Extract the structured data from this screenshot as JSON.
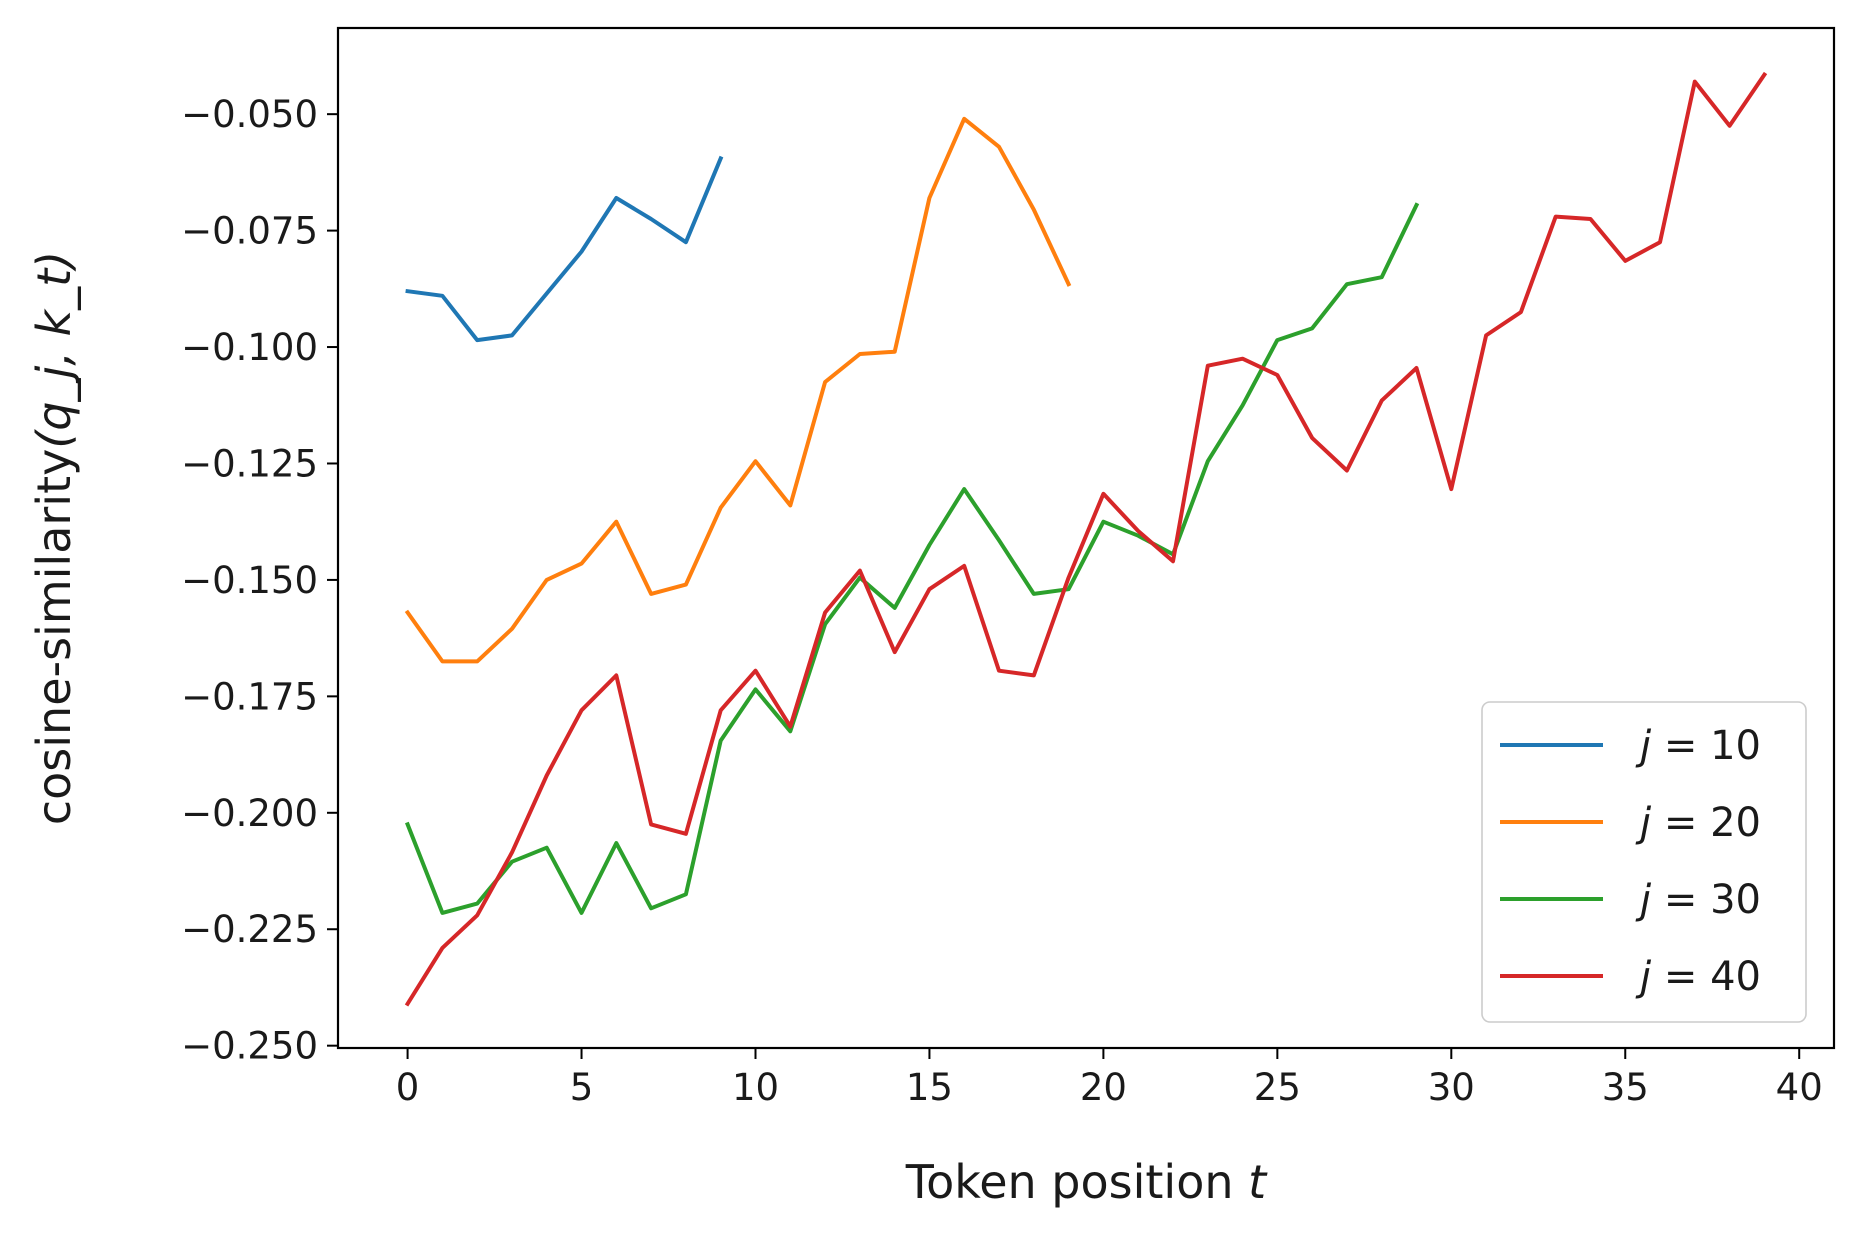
{
  "chart_data": {
    "type": "line",
    "title": "",
    "xlabel": "Token position",
    "xlabel_var": "t",
    "ylabel": "cosine-similarity",
    "ylabel_args": "(q_j, k_t)",
    "xlim": [
      -2,
      41
    ],
    "ylim": [
      -0.2505,
      -0.0315
    ],
    "xticks": [
      0,
      5,
      10,
      15,
      20,
      25,
      30,
      35,
      40
    ],
    "xtick_labels": [
      "0",
      "5",
      "10",
      "15",
      "20",
      "25",
      "30",
      "35",
      "40"
    ],
    "yticks": [
      -0.25,
      -0.225,
      -0.2,
      -0.175,
      -0.15,
      -0.125,
      -0.1,
      -0.075,
      -0.05
    ],
    "ytick_labels": [
      "−0.250",
      "−0.225",
      "−0.200",
      "−0.175",
      "−0.150",
      "−0.125",
      "−0.100",
      "−0.075",
      "−0.050"
    ],
    "grid": false,
    "legend_position": "lower-right",
    "series": [
      {
        "name": "j = 10",
        "legend_var": "j",
        "legend_value": "10",
        "color": "#1f77b4",
        "x": [
          0,
          1,
          2,
          3,
          4,
          5,
          6,
          7,
          8,
          9
        ],
        "y": [
          -0.088,
          -0.089,
          -0.0985,
          -0.0975,
          -0.0885,
          -0.0795,
          -0.068,
          -0.0725,
          -0.0775,
          -0.0595
        ]
      },
      {
        "name": "j = 20",
        "legend_var": "j",
        "legend_value": "20",
        "color": "#ff7f0e",
        "x": [
          0,
          1,
          2,
          3,
          4,
          5,
          6,
          7,
          8,
          9,
          10,
          11,
          12,
          13,
          14,
          15,
          16,
          17,
          18,
          19
        ],
        "y": [
          -0.157,
          -0.1675,
          -0.1675,
          -0.1605,
          -0.15,
          -0.1465,
          -0.1375,
          -0.153,
          -0.151,
          -0.1345,
          -0.1245,
          -0.134,
          -0.1075,
          -0.1015,
          -0.101,
          -0.068,
          -0.051,
          -0.057,
          -0.0705,
          -0.0865
        ]
      },
      {
        "name": "j = 30",
        "legend_var": "j",
        "legend_value": "30",
        "color": "#2ca02c",
        "x": [
          0,
          1,
          2,
          3,
          4,
          5,
          6,
          7,
          8,
          9,
          10,
          11,
          12,
          13,
          14,
          15,
          16,
          17,
          18,
          19,
          20,
          21,
          22,
          23,
          24,
          25,
          26,
          27,
          28,
          29
        ],
        "y": [
          -0.2025,
          -0.2215,
          -0.2195,
          -0.2105,
          -0.2075,
          -0.2215,
          -0.2065,
          -0.2205,
          -0.2175,
          -0.1845,
          -0.1735,
          -0.1825,
          -0.1595,
          -0.1495,
          -0.156,
          -0.1425,
          -0.1305,
          -0.1415,
          -0.153,
          -0.152,
          -0.1375,
          -0.1405,
          -0.1445,
          -0.1245,
          -0.1125,
          -0.0985,
          -0.096,
          -0.0865,
          -0.085,
          -0.0695
        ]
      },
      {
        "name": "j = 40",
        "legend_var": "j",
        "legend_value": "40",
        "color": "#d62728",
        "x": [
          0,
          1,
          2,
          3,
          4,
          5,
          6,
          7,
          8,
          9,
          10,
          11,
          12,
          13,
          14,
          15,
          16,
          17,
          18,
          19,
          20,
          21,
          22,
          23,
          24,
          25,
          26,
          27,
          28,
          29,
          30,
          31,
          32,
          33,
          34,
          35,
          36,
          37,
          38,
          39
        ],
        "y": [
          -0.241,
          -0.229,
          -0.222,
          -0.2085,
          -0.192,
          -0.178,
          -0.1705,
          -0.2025,
          -0.2045,
          -0.178,
          -0.1695,
          -0.1815,
          -0.157,
          -0.148,
          -0.1655,
          -0.152,
          -0.147,
          -0.1695,
          -0.1705,
          -0.1495,
          -0.1315,
          -0.1395,
          -0.146,
          -0.104,
          -0.1025,
          -0.106,
          -0.1195,
          -0.1265,
          -0.1115,
          -0.1045,
          -0.1305,
          -0.0975,
          -0.0925,
          -0.072,
          -0.0725,
          -0.0815,
          -0.0775,
          -0.043,
          -0.0525,
          -0.0415
        ]
      }
    ]
  }
}
